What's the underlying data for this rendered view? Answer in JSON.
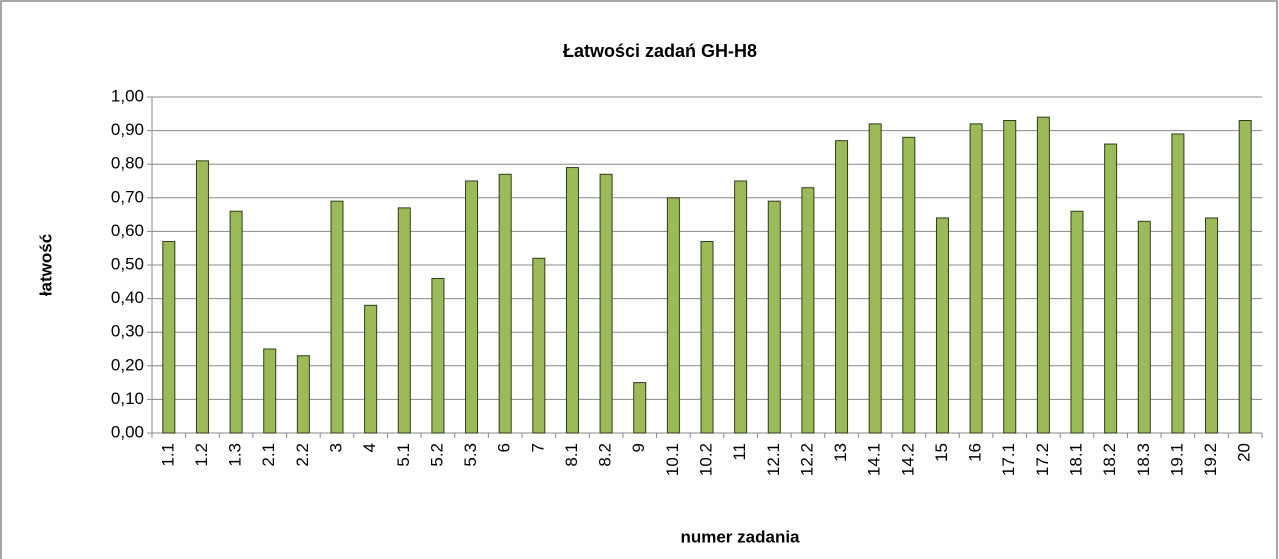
{
  "chart_data": {
    "type": "bar",
    "title": "Łatwości zadań GH-H8",
    "y_label": "łatwość",
    "x_label": "numer zadania",
    "categories": [
      "1.1",
      "1.2",
      "1.3",
      "2.1",
      "2.2",
      "3",
      "4",
      "5.1",
      "5.2",
      "5.3",
      "6",
      "7",
      "8.1",
      "8.2",
      "9",
      "10.1",
      "10.2",
      "11",
      "12.1",
      "12.2",
      "13",
      "14.1",
      "14.2",
      "15",
      "16",
      "17.1",
      "17.2",
      "18.1",
      "18.2",
      "18.3",
      "19.1",
      "19.2",
      "20"
    ],
    "values": [
      0.57,
      0.81,
      0.66,
      0.25,
      0.23,
      0.69,
      0.38,
      0.67,
      0.46,
      0.75,
      0.77,
      0.52,
      0.79,
      0.77,
      0.15,
      0.7,
      0.57,
      0.75,
      0.69,
      0.73,
      0.87,
      0.92,
      0.88,
      0.64,
      0.92,
      0.93,
      0.94,
      0.66,
      0.86,
      0.63,
      0.89,
      0.64,
      0.93
    ],
    "color": "#9bbb59",
    "ylim": [
      0,
      1
    ],
    "yticks": [
      {
        "value": 0,
        "label": "0,00"
      },
      {
        "value": 0.1,
        "label": "0,10"
      },
      {
        "value": 0.2,
        "label": "0,20"
      },
      {
        "value": 0.3,
        "label": "0,30"
      },
      {
        "value": 0.4,
        "label": "0,40"
      },
      {
        "value": 0.5,
        "label": "0,50"
      },
      {
        "value": 0.6,
        "label": "0,60"
      },
      {
        "value": 0.7,
        "label": "0,70"
      },
      {
        "value": 0.8,
        "label": "0,80"
      },
      {
        "value": 0.9,
        "label": "0,90"
      },
      {
        "value": 1,
        "label": "1,00"
      }
    ],
    "grid": true
  }
}
